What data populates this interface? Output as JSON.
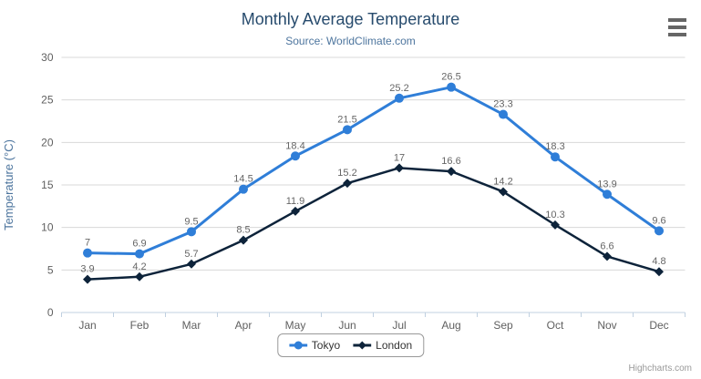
{
  "chart_data": {
    "type": "line",
    "title": "Monthly Average Temperature",
    "subtitle": "Source: WorldClimate.com",
    "categories": [
      "Jan",
      "Feb",
      "Mar",
      "Apr",
      "May",
      "Jun",
      "Jul",
      "Aug",
      "Sep",
      "Oct",
      "Nov",
      "Dec"
    ],
    "series": [
      {
        "name": "Tokyo",
        "color": "#2f7ed8",
        "marker": "circle",
        "values": [
          7,
          6.9,
          9.5,
          14.5,
          18.4,
          21.5,
          25.2,
          26.5,
          23.3,
          18.3,
          13.9,
          9.6
        ]
      },
      {
        "name": "London",
        "color": "#0d233a",
        "marker": "diamond",
        "values": [
          3.9,
          4.2,
          5.7,
          8.5,
          11.9,
          15.2,
          17,
          16.6,
          14.2,
          10.3,
          6.6,
          4.8
        ]
      }
    ],
    "xlabel": "",
    "ylabel": "Temperature (°C)",
    "ylim": [
      0,
      30
    ],
    "ytick_interval": 5,
    "grid": true,
    "legend_position": "bottom",
    "data_labels": true
  },
  "credits": {
    "text": "Highcharts.com"
  },
  "colors": {
    "title": "#274b6d",
    "subtitle": "#4d759e",
    "axis_title": "#4d759e",
    "axis_label": "#606060",
    "data_label": "#666666",
    "gridline": "#d8d8d8",
    "axis_line": "#c0d0e0",
    "legend_border": "#999999",
    "legend_text": "#333333",
    "credits": "#999999",
    "menu_icon": "#666666"
  }
}
